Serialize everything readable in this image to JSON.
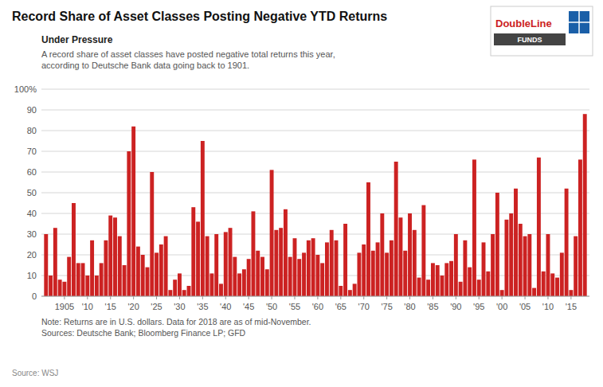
{
  "chart_data": {
    "type": "bar",
    "title": "Record Share of Asset Classes Posting Negative YTD Returns",
    "subtitle": "Under Pressure",
    "annotations": [
      "A record share of asset classes have posted negative total returns this year,\naccording to Deutsche Bank data going back to 1901.",
      "Note: Returns are in U.S. dollars. Data for 2018 are as of mid-November.\nSources: Deutsche Bank; Bloomberg Finance LP; GFD",
      "Source:  WSJ",
      "DoubleLine",
      "FUNDS"
    ],
    "x": [
      1901,
      1902,
      1903,
      1904,
      1905,
      1906,
      1907,
      1908,
      1909,
      1910,
      1911,
      1912,
      1913,
      1914,
      1915,
      1916,
      1917,
      1918,
      1919,
      1920,
      1921,
      1922,
      1923,
      1924,
      1925,
      1926,
      1927,
      1928,
      1929,
      1930,
      1931,
      1932,
      1933,
      1934,
      1935,
      1936,
      1937,
      1938,
      1939,
      1940,
      1941,
      1942,
      1943,
      1944,
      1945,
      1946,
      1947,
      1948,
      1949,
      1950,
      1951,
      1952,
      1953,
      1954,
      1955,
      1956,
      1957,
      1958,
      1959,
      1960,
      1961,
      1962,
      1963,
      1964,
      1965,
      1966,
      1967,
      1968,
      1969,
      1970,
      1971,
      1972,
      1973,
      1974,
      1975,
      1976,
      1977,
      1978,
      1979,
      1980,
      1981,
      1982,
      1983,
      1984,
      1985,
      1986,
      1987,
      1988,
      1989,
      1990,
      1991,
      1992,
      1993,
      1994,
      1995,
      1996,
      1997,
      1998,
      1999,
      2000,
      2001,
      2002,
      2003,
      2004,
      2005,
      2006,
      2007,
      2008,
      2009,
      2010,
      2011,
      2012,
      2013,
      2014,
      2015,
      2016,
      2017,
      2018
    ],
    "values": [
      30,
      10,
      33,
      8,
      7,
      19,
      45,
      16,
      16,
      10,
      27,
      10,
      16,
      27,
      39,
      38,
      29,
      15,
      70,
      82,
      24,
      20,
      14,
      60,
      21,
      25,
      29,
      3,
      8,
      11,
      3,
      5,
      43,
      36,
      75,
      29,
      11,
      30,
      6,
      31,
      33,
      19,
      11,
      13,
      18,
      41,
      22,
      19,
      13,
      61,
      32,
      33,
      42,
      19,
      28,
      18,
      21,
      27,
      28,
      20,
      16,
      26,
      32,
      27,
      5,
      35,
      3,
      6,
      21,
      25,
      55,
      22,
      26,
      40,
      21,
      27,
      65,
      38,
      22,
      40,
      32,
      9,
      44,
      8,
      16,
      15,
      10,
      16,
      17,
      30,
      7,
      27,
      14,
      66,
      8,
      26,
      12,
      30,
      50,
      3,
      37,
      40,
      52,
      35,
      29,
      30,
      4,
      67,
      12,
      30,
      11,
      9,
      21,
      52,
      3,
      29,
      66,
      88
    ],
    "color": "#cc2222",
    "xlim": [
      1900,
      2019
    ],
    "xticks": [
      1905,
      {
        "value": 1910,
        "label": "'10"
      },
      {
        "value": 1915,
        "label": "'15"
      },
      {
        "value": 1920,
        "label": "'20"
      },
      {
        "value": 1925,
        "label": "'25"
      },
      {
        "value": 1930,
        "label": "'30"
      },
      {
        "value": 1935,
        "label": "'35"
      },
      {
        "value": 1940,
        "label": "'40"
      },
      {
        "value": 1945,
        "label": "'45"
      },
      {
        "value": 1950,
        "label": "'50"
      },
      {
        "value": 1955,
        "label": "'55"
      },
      {
        "value": 1960,
        "label": "'60"
      },
      {
        "value": 1965,
        "label": "'65"
      },
      {
        "value": 1970,
        "label": "'70"
      },
      {
        "value": 1975,
        "label": "'75"
      },
      {
        "value": 1980,
        "label": "'80"
      },
      {
        "value": 1985,
        "label": "'85"
      },
      {
        "value": 1990,
        "label": "'90"
      },
      {
        "value": 1995,
        "label": "'95"
      },
      {
        "value": 2000,
        "label": "'00"
      },
      {
        "value": 2005,
        "label": "'05"
      },
      {
        "value": 2010,
        "label": "'10"
      },
      {
        "value": 2015,
        "label": "'15"
      }
    ],
    "ylim": [
      0,
      100
    ],
    "yticks": [
      0,
      10,
      20,
      30,
      40,
      50,
      60,
      70,
      80,
      90,
      {
        "value": 100,
        "label": "100%"
      }
    ],
    "grid": true
  }
}
